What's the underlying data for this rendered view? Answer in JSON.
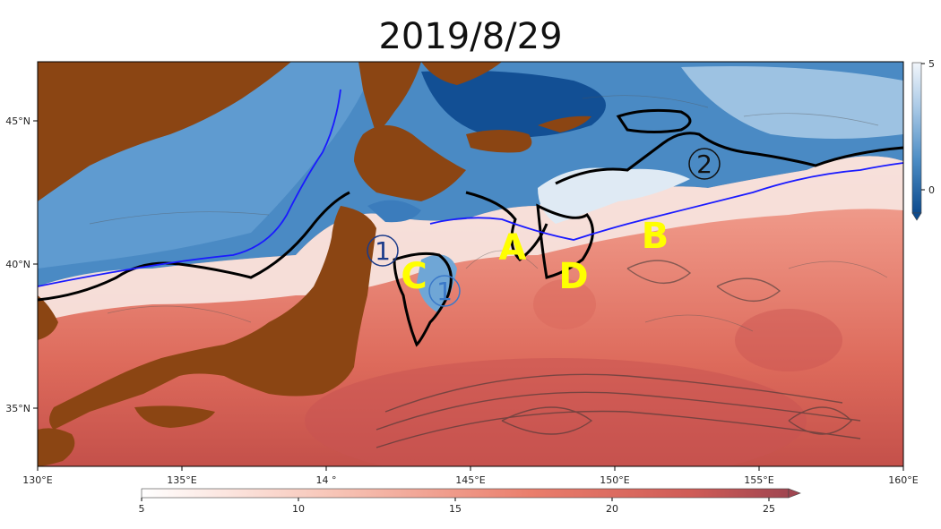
{
  "title": "2019/8/29",
  "map": {
    "lon_ticks": [
      "130°E",
      "135°E",
      "14 °",
      "145°E",
      "150°E",
      "155°E",
      "160°E"
    ],
    "lat_ticks": [
      "45°N",
      "40°N",
      "35°N"
    ],
    "markers": [
      {
        "name": "A",
        "color": "#ffff00"
      },
      {
        "name": "B",
        "color": "#ffff00"
      },
      {
        "name": "C",
        "color": "#ffff00"
      },
      {
        "name": "D",
        "color": "#ffff00"
      }
    ],
    "circled": [
      {
        "label": "1",
        "color": "#1a3a8a"
      },
      {
        "label": "1",
        "color": "#3a78c8"
      },
      {
        "label": "2",
        "color": "#111111"
      }
    ],
    "colors": {
      "land": "#8B4513",
      "cold": "#2f6fb0",
      "warm": "#e07060",
      "front": "#1a1aff"
    }
  },
  "colorbar_right": {
    "ticks": [
      "5",
      "0"
    ]
  },
  "colorbar_bottom": {
    "ticks": [
      "5",
      "10",
      "15",
      "20",
      "25"
    ]
  }
}
